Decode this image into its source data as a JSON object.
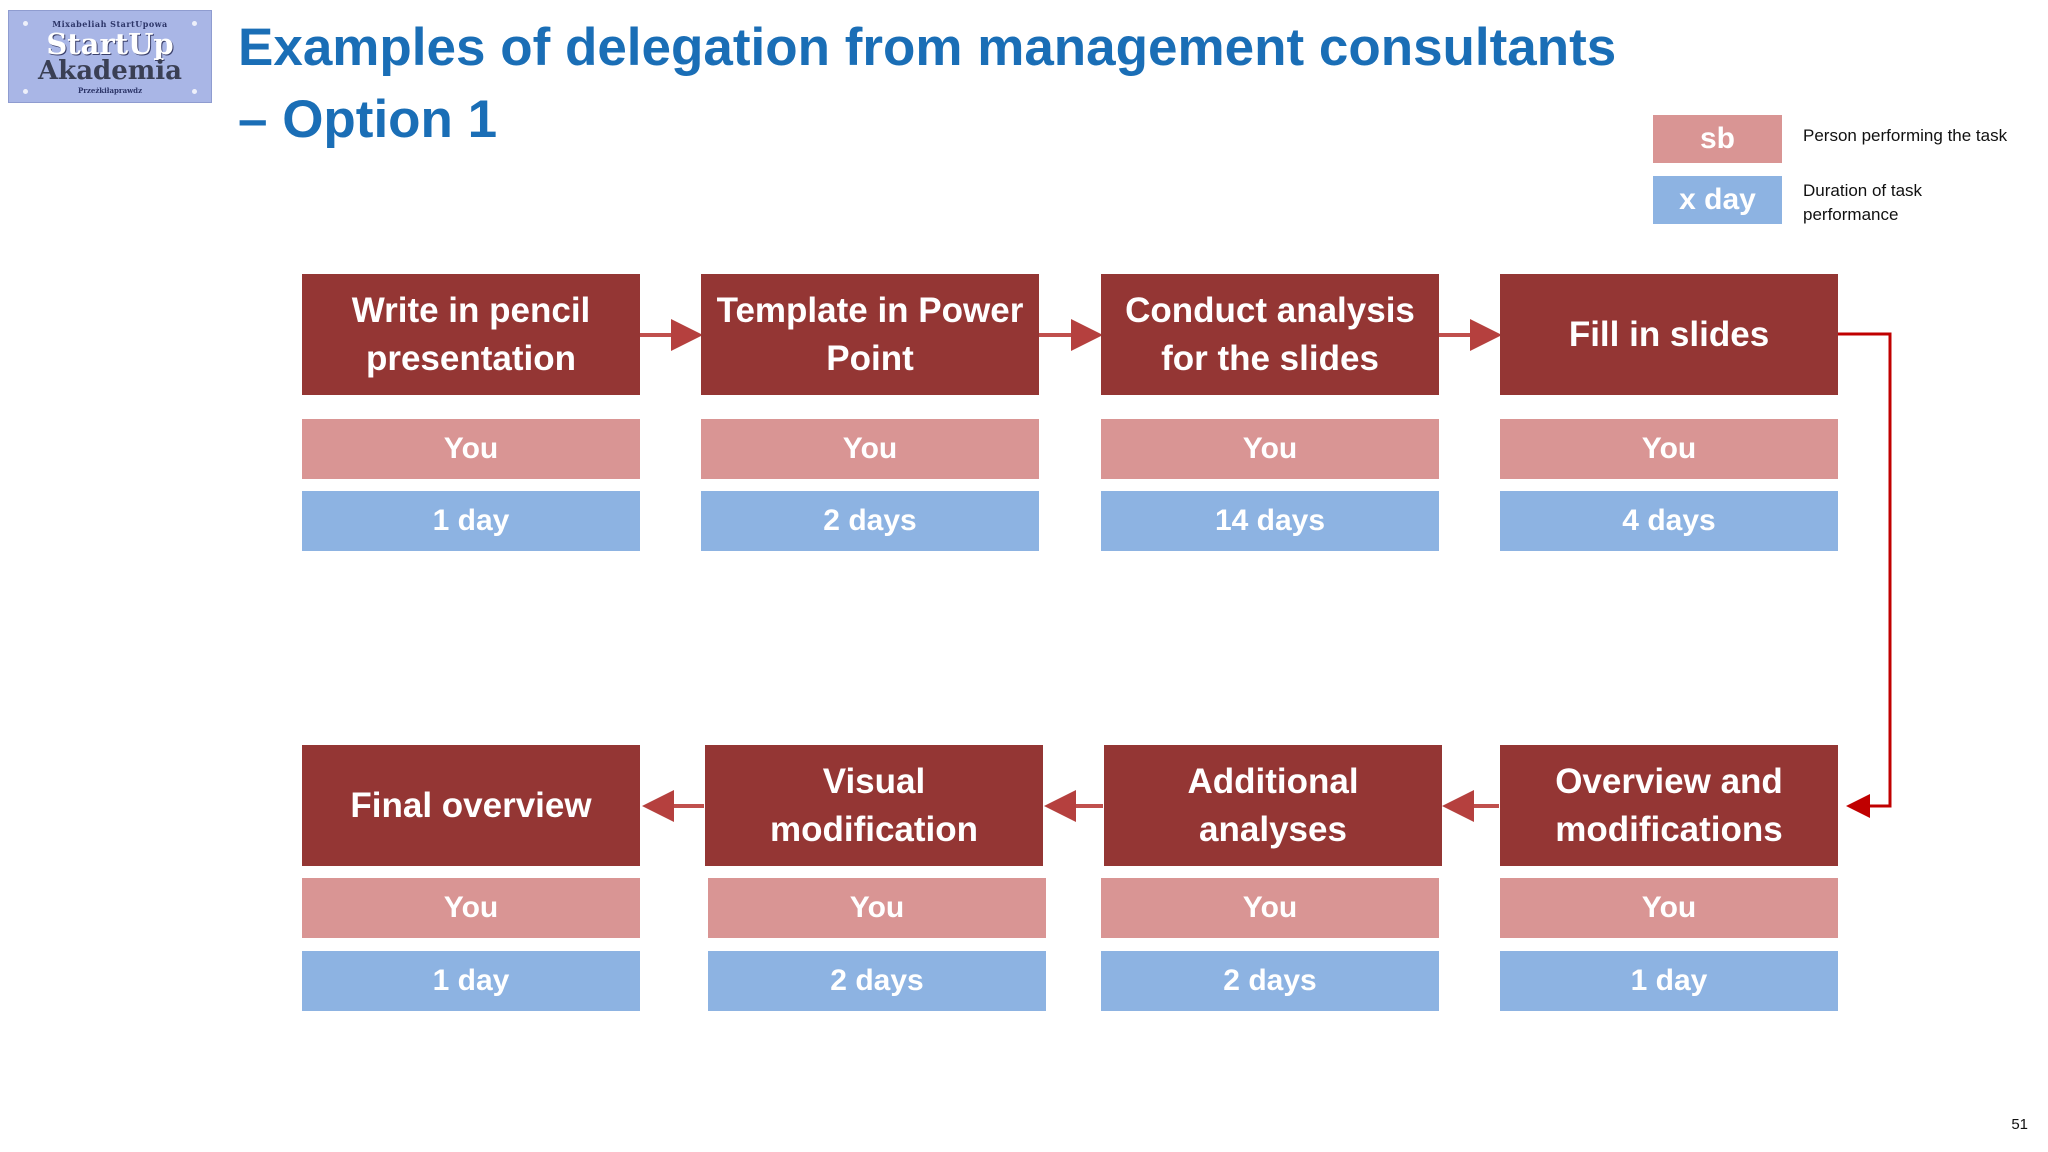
{
  "logo": {
    "top_text": "Mixabeliah StartUpowa",
    "line1": "StartUp",
    "line2": "Akademia",
    "bottom_text": "Przeżkiłaprawdz"
  },
  "title": "Examples of delegation from management consultants – Option 1",
  "legend": {
    "person_box": "sb",
    "person_text": "Person performing the task",
    "duration_box": "x day",
    "duration_text": "Duration of task performance"
  },
  "process": {
    "row1": [
      {
        "task": "Write in pencil presentation",
        "who": "You",
        "duration": "1 day"
      },
      {
        "task": "Template in Power Point",
        "who": "You",
        "duration": "2 days"
      },
      {
        "task": "Conduct analysis for the slides",
        "who": "You",
        "duration": "14 days"
      },
      {
        "task": "Fill in slides",
        "who": "You",
        "duration": "4 days"
      }
    ],
    "row2": [
      {
        "task": "Final overview",
        "who": "You",
        "duration": "1 day"
      },
      {
        "task": "Visual modification",
        "who": "You",
        "duration": "2 days"
      },
      {
        "task": "Additional analyses",
        "who": "You",
        "duration": "2 days"
      },
      {
        "task": "Overview and modifications",
        "who": "You",
        "duration": "1 day"
      }
    ]
  },
  "colors": {
    "title": "#1a6eb6",
    "task": "#943634",
    "person": "#d99594",
    "duration": "#8db3e2",
    "connector": "#c00000"
  },
  "page_number": "51"
}
